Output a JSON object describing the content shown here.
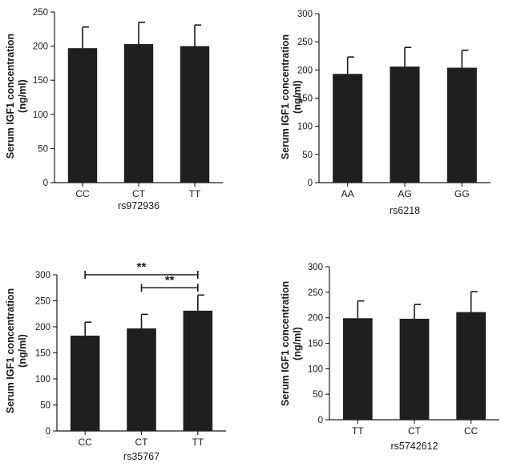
{
  "chart_data": [
    {
      "type": "bar",
      "xlabel": "rs972936",
      "ylabel_lines": [
        "Serum IGF1 concentration",
        "(ng/ml)"
      ],
      "ylim": [
        0,
        250
      ],
      "yticks": [
        0,
        50,
        100,
        150,
        200,
        250
      ],
      "categories": [
        "CC",
        "CT",
        "TT"
      ],
      "values": [
        197,
        203,
        200
      ],
      "errors": [
        31,
        32,
        31
      ],
      "significance": [],
      "color": "#1f1f1f"
    },
    {
      "type": "bar",
      "xlabel": "rs6218",
      "ylabel_lines": [
        "Serum IGF1 concentration",
        "(ng/ml)"
      ],
      "ylim": [
        0,
        300
      ],
      "yticks": [
        0,
        50,
        100,
        150,
        200,
        250,
        300
      ],
      "categories": [
        "AA",
        "AG",
        "GG"
      ],
      "values": [
        193,
        206,
        204
      ],
      "errors": [
        30,
        34,
        31
      ],
      "significance": [],
      "color": "#1f1f1f"
    },
    {
      "type": "bar",
      "xlabel": "rs35767",
      "ylabel_lines": [
        "Serum IGF1 concentration",
        "(ng/ml)"
      ],
      "ylim": [
        0,
        300
      ],
      "yticks": [
        0,
        50,
        100,
        150,
        200,
        250,
        300
      ],
      "categories": [
        "CC",
        "CT",
        "TT"
      ],
      "values": [
        183,
        197,
        231
      ],
      "errors": [
        26,
        27,
        30
      ],
      "significance": [
        {
          "from": 0,
          "to": 2,
          "label": "**",
          "y": 300
        },
        {
          "from": 1,
          "to": 2,
          "label": "**",
          "y": 275
        }
      ],
      "color": "#1f1f1f"
    },
    {
      "type": "bar",
      "xlabel": "rs5742612",
      "ylabel_lines": [
        "Serum IGF1 concentration",
        "(ng/ml)"
      ],
      "ylim": [
        0,
        300
      ],
      "yticks": [
        0,
        50,
        100,
        150,
        200,
        250,
        300
      ],
      "categories": [
        "TT",
        "CT",
        "CC"
      ],
      "values": [
        199,
        198,
        211
      ],
      "errors": [
        34,
        28,
        40
      ],
      "significance": [],
      "color": "#1f1f1f"
    }
  ]
}
